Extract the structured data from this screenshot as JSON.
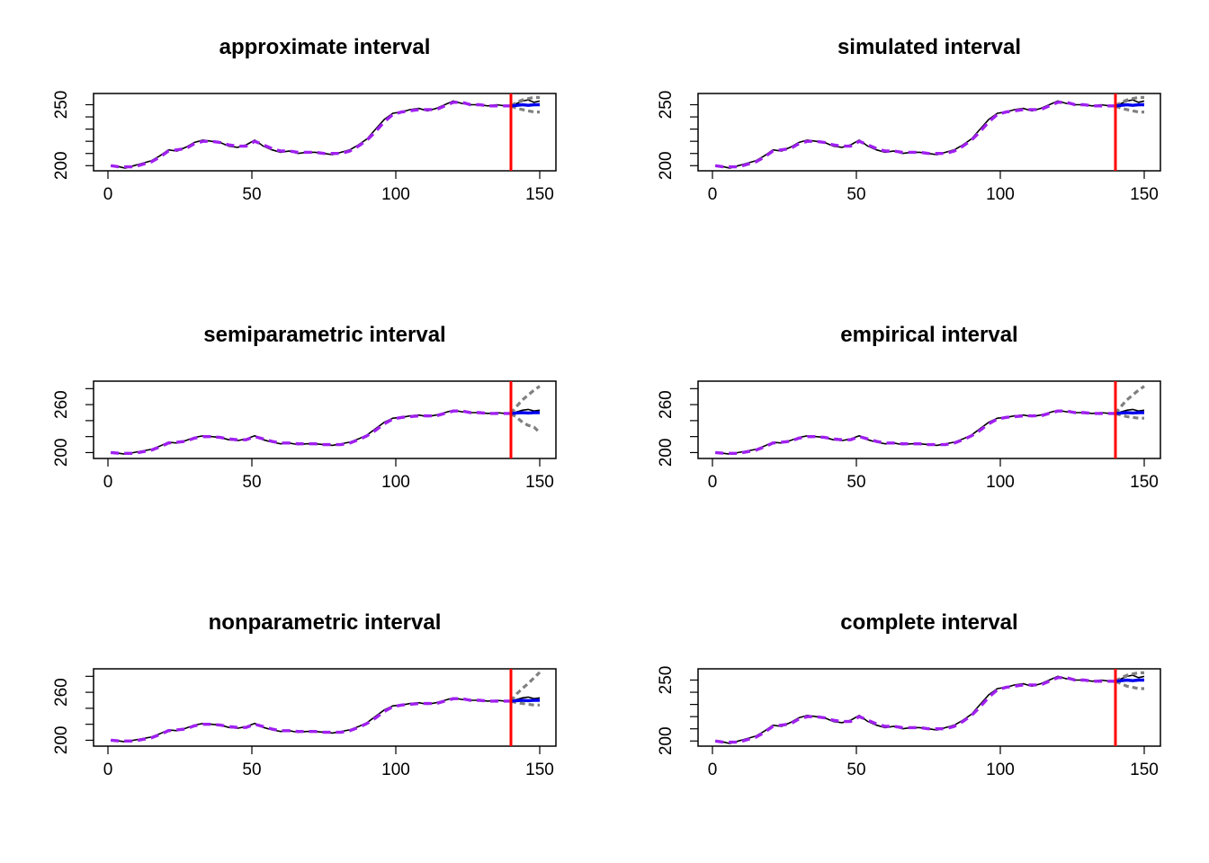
{
  "colors": {
    "actual": "#000000",
    "fitted": "#a020f0",
    "forecast": "#0000ee",
    "interval": "#808080",
    "interval_light": "#bebebe",
    "holdout_marker": "#ff0000"
  },
  "shared": {
    "x": [
      1,
      4,
      6,
      9,
      12,
      15,
      18,
      21,
      24,
      27,
      30,
      33,
      36,
      39,
      42,
      45,
      48,
      51,
      54,
      57,
      60,
      63,
      66,
      69,
      72,
      75,
      78,
      81,
      84,
      87,
      90,
      93,
      96,
      99,
      102,
      105,
      108,
      111,
      114,
      117,
      120,
      123,
      126,
      129,
      132,
      135,
      138,
      140
    ],
    "actual": [
      200,
      199,
      198,
      200,
      202,
      204,
      208,
      213,
      212,
      215,
      219,
      221,
      220,
      219,
      216,
      215,
      217,
      221,
      216,
      213,
      211,
      212,
      210,
      211,
      211,
      210,
      209,
      211,
      213,
      217,
      222,
      230,
      238,
      243,
      244,
      246,
      247,
      245,
      247,
      250,
      253,
      251,
      250,
      250,
      249,
      250,
      249,
      249
    ],
    "fitted": [
      200,
      199,
      199,
      199,
      201,
      203,
      207,
      212,
      213,
      214,
      218,
      220,
      220,
      219,
      217,
      216,
      216,
      220,
      217,
      214,
      212,
      212,
      211,
      211,
      211,
      210,
      210,
      210,
      212,
      216,
      221,
      228,
      236,
      242,
      244,
      245,
      246,
      246,
      246,
      249,
      252,
      252,
      250,
      250,
      249,
      249,
      249,
      249
    ],
    "forecast_x": [
      140,
      142,
      144,
      146,
      148,
      150
    ],
    "forecast": [
      249,
      249.5,
      250,
      249.5,
      250,
      250
    ],
    "holdout_actual": [
      249,
      251,
      253,
      254,
      252,
      253
    ],
    "holdout_x": 140
  },
  "chart_data": [
    {
      "type": "line",
      "title": "approximate interval",
      "xlim": [
        0,
        150
      ],
      "ylim": [
        198,
        257
      ],
      "x_ticks": [
        0,
        50,
        100,
        150
      ],
      "y_tick_labels": [
        200,
        250
      ],
      "y_ticks_minor": [
        200,
        210,
        220,
        230,
        240,
        250
      ],
      "interval_upper": [
        249,
        252,
        254,
        255,
        256,
        256
      ],
      "interval_lower": [
        249,
        247,
        246,
        245,
        244,
        244
      ]
    },
    {
      "type": "line",
      "title": "simulated interval",
      "xlim": [
        0,
        150
      ],
      "ylim": [
        198,
        257
      ],
      "x_ticks": [
        0,
        50,
        100,
        150
      ],
      "y_tick_labels": [
        200,
        250
      ],
      "y_ticks_minor": [
        200,
        210,
        220,
        230,
        240,
        250
      ],
      "interval_upper": [
        249,
        252,
        254,
        255,
        256,
        256
      ],
      "interval_lower": [
        249,
        247,
        246,
        245,
        244,
        244
      ]
    },
    {
      "type": "line",
      "title": "semiparametric interval",
      "xlim": [
        0,
        150
      ],
      "ylim": [
        196,
        286
      ],
      "x_ticks": [
        0,
        50,
        100,
        150
      ],
      "y_tick_labels": [
        200,
        260
      ],
      "y_ticks_minor": [
        200,
        220,
        240,
        260,
        280
      ],
      "interval_upper": [
        249,
        258,
        266,
        272,
        278,
        283
      ],
      "interval_lower": [
        249,
        244,
        238,
        234,
        232,
        225
      ]
    },
    {
      "type": "line",
      "title": "empirical interval",
      "xlim": [
        0,
        150
      ],
      "ylim": [
        196,
        286
      ],
      "x_ticks": [
        0,
        50,
        100,
        150
      ],
      "y_tick_labels": [
        200,
        260
      ],
      "y_ticks_minor": [
        200,
        220,
        240,
        260,
        280
      ],
      "interval_upper": [
        249,
        258,
        266,
        272,
        278,
        283
      ],
      "interval_lower": [
        249,
        247,
        245,
        244,
        243,
        243
      ]
    },
    {
      "type": "line",
      "title": "nonparametric interval",
      "xlim": [
        0,
        150
      ],
      "ylim": [
        196,
        286
      ],
      "x_ticks": [
        0,
        50,
        100,
        150
      ],
      "y_tick_labels": [
        200,
        260
      ],
      "y_ticks_minor": [
        200,
        220,
        240,
        260,
        280
      ],
      "interval_upper": [
        249,
        258,
        265,
        271,
        278,
        285
      ],
      "interval_lower": [
        249,
        247,
        246,
        245,
        244,
        244
      ]
    },
    {
      "type": "line",
      "title": "complete interval",
      "xlim": [
        0,
        150
      ],
      "ylim": [
        198,
        257
      ],
      "x_ticks": [
        0,
        50,
        100,
        150
      ],
      "y_tick_labels": [
        200,
        250
      ],
      "y_ticks_minor": [
        200,
        210,
        220,
        230,
        240,
        250
      ],
      "interval_upper": [
        249,
        252,
        254,
        255,
        256,
        256
      ],
      "interval_lower": [
        249,
        247,
        245,
        244,
        243,
        243
      ]
    }
  ]
}
